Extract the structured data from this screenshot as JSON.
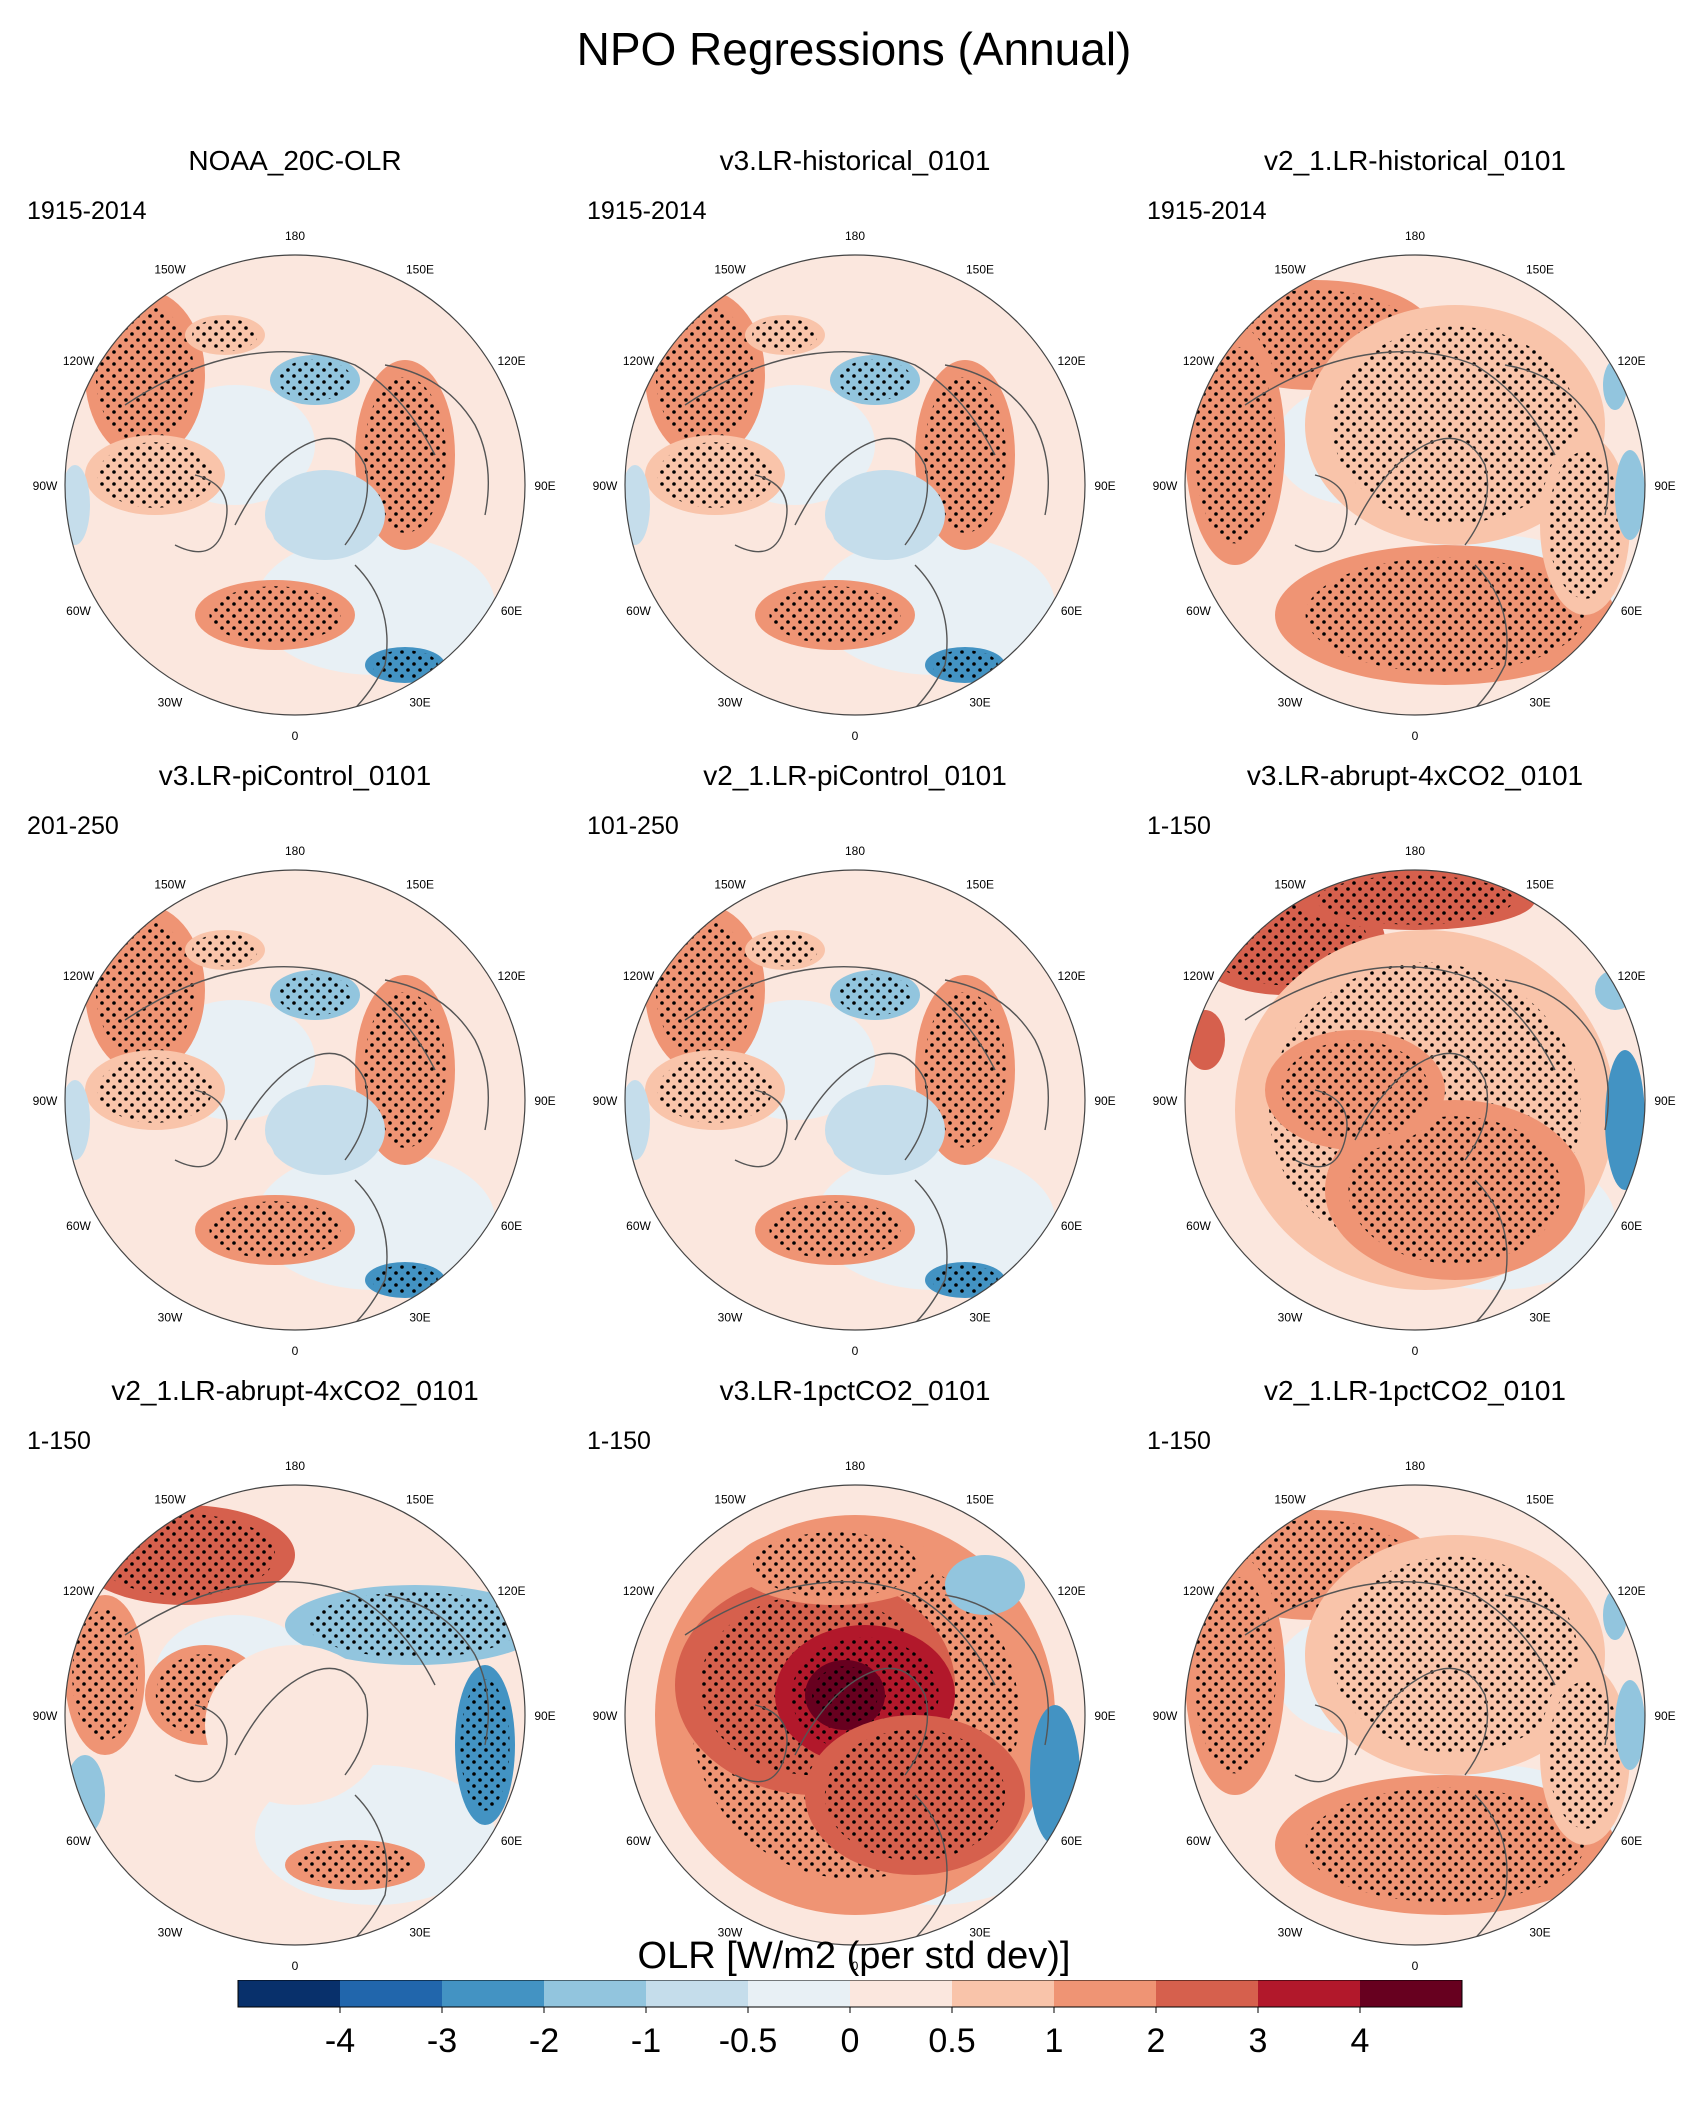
{
  "chart_data": {
    "type": "heatmap",
    "title": "NPO Regressions (Annual)",
    "projection": "north-polar-stereographic",
    "longitude_labels": [
      "180",
      "150E",
      "120E",
      "90E",
      "60E",
      "30E",
      "0",
      "30W",
      "60W",
      "90W",
      "120W",
      "150W"
    ],
    "colorbar": {
      "title": "OLR [W/m2 (per std dev)]",
      "levels": [
        "-4",
        "-3",
        "-2",
        "-1",
        "-0.5",
        "0",
        "0.5",
        "1",
        "2",
        "3",
        "4"
      ],
      "colors": [
        "#08306b",
        "#2166ac",
        "#4393c3",
        "#92c5de",
        "#c5ddeb",
        "#e8f0f5",
        "#fbe7de",
        "#f9c4aa",
        "#ef9474",
        "#d6604d",
        "#b2182b",
        "#67001f"
      ]
    },
    "panels": [
      {
        "title": "NOAA_20C-OLR",
        "period": "1915-2014",
        "pattern": "mixed-weak"
      },
      {
        "title": "v3.LR-historical_0101",
        "period": "1915-2014",
        "pattern": "mixed-weak"
      },
      {
        "title": "v2_1.LR-historical_0101",
        "period": "1915-2014",
        "pattern": "positive-moderate"
      },
      {
        "title": "v3.LR-piControl_0101",
        "period": "201-250",
        "pattern": "mixed-weak"
      },
      {
        "title": "v2_1.LR-piControl_0101",
        "period": "101-250",
        "pattern": "mixed-weak"
      },
      {
        "title": "v3.LR-abrupt-4xCO2_0101",
        "period": "1-150",
        "pattern": "positive-strong"
      },
      {
        "title": "v2_1.LR-abrupt-4xCO2_0101",
        "period": "1-150",
        "pattern": "mixed-strong"
      },
      {
        "title": "v3.LR-1pctCO2_0101",
        "period": "1-150",
        "pattern": "positive-very-strong"
      },
      {
        "title": "v2_1.LR-1pctCO2_0101",
        "period": "1-150",
        "pattern": "positive-moderate"
      }
    ]
  }
}
